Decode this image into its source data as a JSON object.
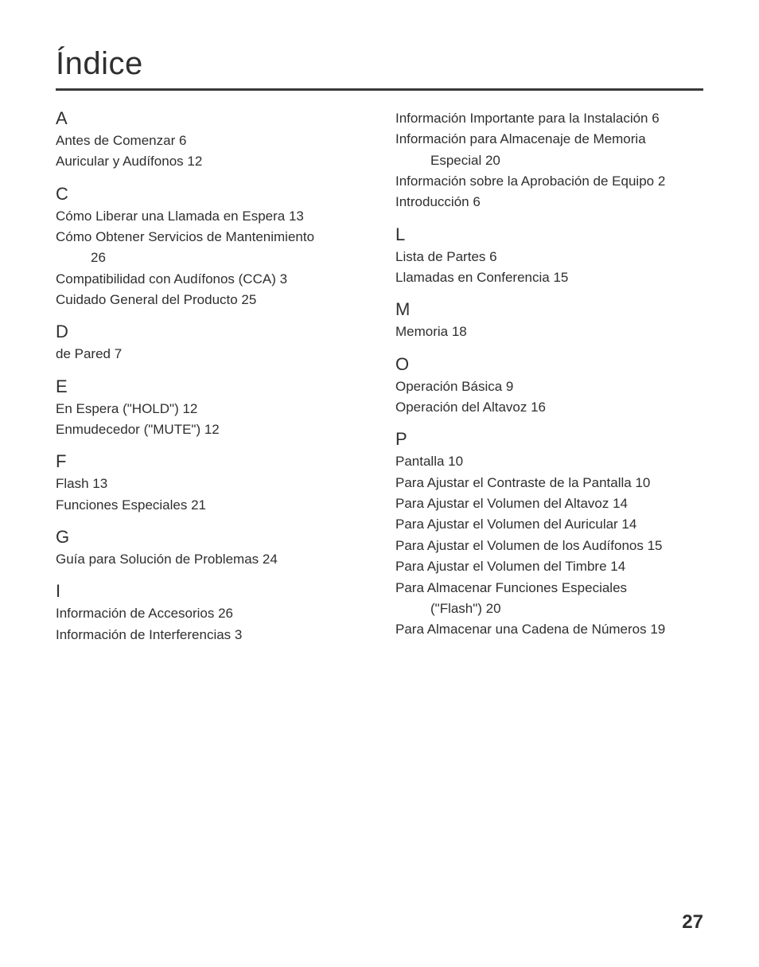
{
  "title": "Índice",
  "page_number": "27",
  "left_sections": [
    {
      "letter": "A",
      "entries": [
        {
          "text": "Antes de Comenzar  6"
        },
        {
          "text": "Auricular y Audífonos  12"
        }
      ]
    },
    {
      "letter": "C",
      "entries": [
        {
          "text": "Cómo Liberar una Llamada en Espera  13"
        },
        {
          "text": "Cómo Obtener Servicios de Mantenimiento  ",
          "cont": "26"
        },
        {
          "text": "Compatibilidad con Audífonos (CCA)  3"
        },
        {
          "text": "Cuidado General del Producto  25"
        }
      ]
    },
    {
      "letter": "D",
      "entries": [
        {
          "text": "de Pared  7"
        }
      ]
    },
    {
      "letter": "E",
      "entries": [
        {
          "text": "En Espera (\"HOLD\")  12"
        },
        {
          "text": "Enmudecedor (\"MUTE\")  12"
        }
      ]
    },
    {
      "letter": "F",
      "entries": [
        {
          "text": "Flash  13"
        },
        {
          "text": "Funciones Especiales  21"
        }
      ]
    },
    {
      "letter": "G",
      "entries": [
        {
          "text": "Guía para Solución de Problemas  24"
        }
      ]
    },
    {
      "letter": "I",
      "entries": [
        {
          "text": "Información de Accesorios  26"
        },
        {
          "text": "Información de Interferencias  3"
        }
      ]
    }
  ],
  "right_lead_entries": [
    {
      "text": "Información Importante para la Instalación  6"
    },
    {
      "text": "Información para Almacenaje de Memoria ",
      "cont": "Especial  20"
    },
    {
      "text": "Información sobre la Aprobación de Equipo  2"
    },
    {
      "text": "Introducción  6"
    }
  ],
  "right_sections": [
    {
      "letter": "L",
      "entries": [
        {
          "text": "Lista de Partes  6"
        },
        {
          "text": "Llamadas en Conferencia  15"
        }
      ]
    },
    {
      "letter": "M",
      "entries": [
        {
          "text": "Memoria  18"
        }
      ]
    },
    {
      "letter": "O",
      "entries": [
        {
          "text": "Operación Básica  9"
        },
        {
          "text": "Operación del Altavoz  16"
        }
      ]
    },
    {
      "letter": "P",
      "entries": [
        {
          "text": "Pantalla  10"
        },
        {
          "text": "Para Ajustar el Contraste de la Pantalla  10"
        },
        {
          "text": "Para Ajustar el Volumen del Altavoz  14"
        },
        {
          "text": "Para Ajustar el Volumen del Auricular  14"
        },
        {
          "text": "Para Ajustar el Volumen de los Audífonos  15"
        },
        {
          "text": "Para Ajustar el Volumen del Timbre  14"
        },
        {
          "text": "Para Almacenar Funciones Especiales ",
          "cont": "(\"Flash\")  20"
        },
        {
          "text": "Para Almacenar una Cadena de Números  19"
        }
      ]
    }
  ]
}
